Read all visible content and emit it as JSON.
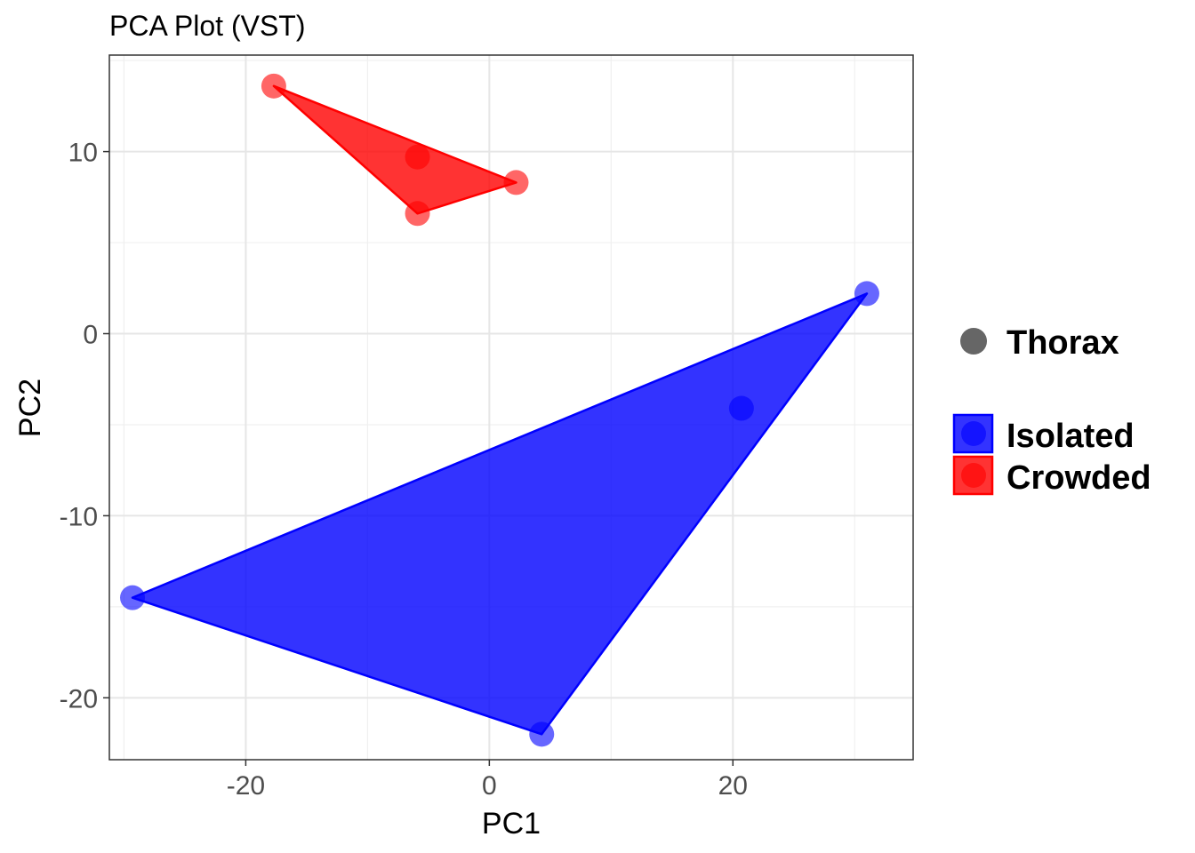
{
  "chart_data": {
    "type": "scatter",
    "title": "PCA Plot (VST)",
    "xlabel": "PC1",
    "ylabel": "PC2",
    "xlim": [
      -31.2,
      34.8
    ],
    "ylim": [
      -23.4,
      15.3
    ],
    "xticks": [
      -20,
      0,
      20
    ],
    "yticks": [
      -20,
      -10,
      0,
      10
    ],
    "grid": true,
    "legend_position": "right",
    "shape_legend": {
      "label": "Thorax",
      "color": "#666666"
    },
    "series": [
      {
        "name": "Isolated",
        "color": "#0000ff",
        "fill": "#0000ff",
        "points": [
          {
            "x": -29.3,
            "y": -14.5
          },
          {
            "x": 4.3,
            "y": -22.0
          },
          {
            "x": 20.7,
            "y": -4.1
          },
          {
            "x": 31.0,
            "y": 2.2
          }
        ],
        "hull": [
          0,
          1,
          3
        ]
      },
      {
        "name": "Crowded",
        "color": "#ff0000",
        "fill": "#ff0000",
        "points": [
          {
            "x": -17.7,
            "y": 13.6
          },
          {
            "x": -5.9,
            "y": 9.7
          },
          {
            "x": -5.9,
            "y": 6.6
          },
          {
            "x": 2.2,
            "y": 8.3
          }
        ],
        "hull": [
          0,
          2,
          3
        ]
      }
    ]
  }
}
